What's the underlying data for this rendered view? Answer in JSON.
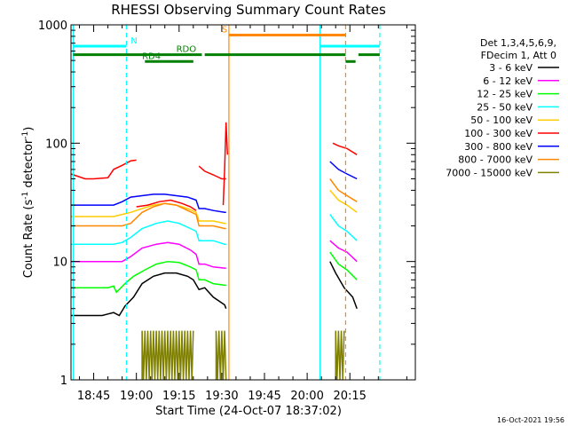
{
  "chart_data": {
    "type": "line",
    "title": "RHESSI Observing Summary Count Rates",
    "xlabel": "Start Time (24-Oct-07 18:37:02)",
    "ylabel_parts": [
      "Count Rate (s",
      "-1",
      " detector",
      "-1",
      ")"
    ],
    "yscale": "log",
    "ylim": [
      1,
      1000
    ],
    "xlim_min": [
      37.03,
      158
    ],
    "x_ticks": [
      {
        "m": 45,
        "label": "18:45"
      },
      {
        "m": 60,
        "label": "19:00"
      },
      {
        "m": 75,
        "label": "19:15"
      },
      {
        "m": 90,
        "label": "19:30"
      },
      {
        "m": 105,
        "label": "19:45"
      },
      {
        "m": 120,
        "label": "20:00"
      },
      {
        "m": 135,
        "label": "20:15"
      }
    ],
    "y_ticks": [
      {
        "v": 1,
        "label": "1"
      },
      {
        "v": 10,
        "label": "10"
      },
      {
        "v": 100,
        "label": "100"
      },
      {
        "v": 1000,
        "label": "1000"
      }
    ],
    "legend": {
      "header": [
        "Det 1,3,4,5,6,9,",
        "FDecim 1, Att 0"
      ],
      "placement": "right",
      "entries": [
        {
          "label": "3 - 6 keV",
          "color": "#000000"
        },
        {
          "label": "6 - 12 keV",
          "color": "#ff00ff"
        },
        {
          "label": "12 - 25 keV",
          "color": "#00ff00"
        },
        {
          "label": "25 - 50 keV",
          "color": "#00ffff"
        },
        {
          "label": "50 - 100 keV",
          "color": "#ffcc00"
        },
        {
          "label": "100 - 300 keV",
          "color": "#ff0000"
        },
        {
          "label": "300 - 800 keV",
          "color": "#0000ff"
        },
        {
          "label": "800 - 7000 keV",
          "color": "#ff8800"
        },
        {
          "label": "7000 - 15000 keV",
          "color": "#808000"
        }
      ]
    },
    "series": [
      {
        "name": "3 - 6 keV",
        "color": "#000000",
        "segments": [
          [
            [
              37,
              3.5
            ],
            [
              48,
              3.5
            ],
            [
              50,
              3.6
            ],
            [
              52,
              3.7
            ],
            [
              54,
              3.5
            ],
            [
              56,
              4.2
            ],
            [
              59,
              5
            ],
            [
              62,
              6.5
            ],
            [
              66,
              7.5
            ],
            [
              70,
              8
            ],
            [
              74,
              8
            ],
            [
              78,
              7.5
            ],
            [
              80,
              7
            ],
            [
              82,
              5.8
            ],
            [
              84,
              6
            ],
            [
              87,
              5
            ],
            [
              91,
              4.3
            ],
            [
              91.5,
              4
            ]
          ],
          [
            [
              128,
              10
            ],
            [
              130,
              8
            ],
            [
              133,
              6
            ],
            [
              136,
              5
            ],
            [
              137.5,
              4
            ]
          ]
        ]
      },
      {
        "name": "6 - 12 keV",
        "color": "#ff00ff",
        "segments": [
          [
            [
              37,
              10
            ],
            [
              45,
              10
            ],
            [
              52,
              10
            ],
            [
              55,
              10
            ],
            [
              58,
              11
            ],
            [
              62,
              13
            ],
            [
              67,
              14
            ],
            [
              71,
              14.5
            ],
            [
              75,
              14
            ],
            [
              79,
              12.5
            ],
            [
              81,
              11.5
            ],
            [
              82,
              9.5
            ],
            [
              84,
              9.5
            ],
            [
              87,
              9
            ],
            [
              91,
              8.8
            ],
            [
              91.5,
              8.8
            ]
          ],
          [
            [
              128,
              15
            ],
            [
              131,
              13
            ],
            [
              134,
              12
            ],
            [
              137.5,
              10
            ]
          ]
        ]
      },
      {
        "name": "12 - 25 keV",
        "color": "#00ff00",
        "segments": [
          [
            [
              37,
              6
            ],
            [
              45,
              6
            ],
            [
              50,
              6
            ],
            [
              52,
              6.2
            ],
            [
              53,
              5.5
            ],
            [
              56,
              6.5
            ],
            [
              59,
              7.5
            ],
            [
              63,
              8.5
            ],
            [
              67,
              9.5
            ],
            [
              71,
              10
            ],
            [
              75,
              9.8
            ],
            [
              79,
              9
            ],
            [
              81,
              8.5
            ],
            [
              82,
              7
            ],
            [
              84,
              7
            ],
            [
              87,
              6.5
            ],
            [
              91,
              6.3
            ],
            [
              91.5,
              6.3
            ]
          ],
          [
            [
              128,
              12
            ],
            [
              131,
              9.5
            ],
            [
              134,
              8.5
            ],
            [
              137.5,
              7
            ]
          ]
        ]
      },
      {
        "name": "25 - 50 keV",
        "color": "#00ffff",
        "segments": [
          [
            [
              37,
              14
            ],
            [
              45,
              14
            ],
            [
              52,
              14
            ],
            [
              55,
              14.5
            ],
            [
              58,
              16
            ],
            [
              62,
              19
            ],
            [
              67,
              21
            ],
            [
              71,
              22
            ],
            [
              75,
              21
            ],
            [
              79,
              19
            ],
            [
              81,
              18
            ],
            [
              82,
              15
            ],
            [
              84,
              15
            ],
            [
              87,
              15
            ],
            [
              91,
              14
            ],
            [
              91.5,
              14
            ]
          ],
          [
            [
              128,
              25
            ],
            [
              131,
              20
            ],
            [
              134,
              18
            ],
            [
              137.5,
              15
            ]
          ]
        ]
      },
      {
        "name": "50 - 100 keV",
        "color": "#ffcc00",
        "segments": [
          [
            [
              37,
              24
            ],
            [
              45,
              24
            ],
            [
              52,
              24
            ],
            [
              55,
              25
            ],
            [
              58,
              26
            ],
            [
              62,
              28
            ],
            [
              66,
              30
            ],
            [
              70,
              31
            ],
            [
              74,
              30
            ],
            [
              78,
              28
            ],
            [
              81,
              26
            ],
            [
              82,
              22
            ],
            [
              84,
              22
            ],
            [
              87,
              22
            ],
            [
              91,
              21
            ],
            [
              91.5,
              21
            ]
          ],
          [
            [
              128,
              40
            ],
            [
              131,
              33
            ],
            [
              134,
              30
            ],
            [
              137.5,
              26
            ]
          ]
        ]
      },
      {
        "name": "100 - 300 keV",
        "color": "#ff0000",
        "segments": [
          [
            [
              37,
              55
            ],
            [
              42,
              50
            ],
            [
              45,
              50
            ],
            [
              50,
              51
            ],
            [
              52,
              60
            ],
            [
              55,
              65
            ],
            [
              58,
              71
            ],
            [
              60,
              72
            ]
          ],
          [
            [
              60,
              29
            ],
            [
              64,
              30
            ],
            [
              68,
              32
            ],
            [
              72,
              33
            ],
            [
              76,
              31
            ],
            [
              79,
              29
            ],
            [
              81,
              27
            ]
          ],
          [
            [
              82,
              64
            ],
            [
              84,
              58
            ],
            [
              87,
              54
            ],
            [
              90,
              50
            ],
            [
              91.5,
              50
            ]
          ],
          [
            [
              129,
              100
            ],
            [
              131,
              95
            ],
            [
              134,
              90
            ],
            [
              137.5,
              80
            ]
          ]
        ]
      },
      {
        "name": "300 - 800 keV",
        "color": "#0000ff",
        "segments": [
          [
            [
              37,
              30
            ],
            [
              45,
              30
            ],
            [
              52,
              30
            ],
            [
              55,
              32
            ],
            [
              58,
              35
            ],
            [
              62,
              36
            ],
            [
              66,
              37
            ],
            [
              70,
              37
            ],
            [
              74,
              36
            ],
            [
              78,
              35
            ],
            [
              81,
              33
            ],
            [
              82,
              28
            ],
            [
              84,
              28
            ],
            [
              87,
              27
            ],
            [
              91,
              26
            ],
            [
              91.5,
              26
            ]
          ],
          [
            [
              128,
              70
            ],
            [
              131,
              60
            ],
            [
              134,
              55
            ],
            [
              137.5,
              50
            ]
          ]
        ]
      },
      {
        "name": "800 - 7000 keV",
        "color": "#ff8800",
        "segments": [
          [
            [
              37,
              20
            ],
            [
              45,
              20
            ],
            [
              52,
              20
            ],
            [
              55,
              20
            ],
            [
              58,
              21
            ],
            [
              62,
              26
            ],
            [
              66,
              29
            ],
            [
              70,
              31
            ],
            [
              74,
              30
            ],
            [
              78,
              27
            ],
            [
              81,
              25
            ],
            [
              82,
              20
            ],
            [
              84,
              20
            ],
            [
              87,
              20
            ],
            [
              91,
              19
            ],
            [
              91.5,
              19
            ]
          ],
          [
            [
              128,
              50
            ],
            [
              131,
              40
            ],
            [
              134,
              36
            ],
            [
              137.5,
              32
            ]
          ]
        ]
      },
      {
        "name": "7000 - 15000 keV",
        "color": "#808000",
        "segments": [
          [
            [
              62,
              1.0
            ],
            [
              62,
              2.6
            ],
            [
              62.5,
              1.0
            ],
            [
              63,
              2.6
            ],
            [
              63.5,
              1.0
            ],
            [
              64,
              2.6
            ],
            [
              64.5,
              1.0
            ],
            [
              65,
              2.6
            ],
            [
              65.5,
              1.0
            ],
            [
              66,
              2.6
            ],
            [
              66.5,
              1.0
            ],
            [
              67,
              2.6
            ],
            [
              67.5,
              1.0
            ],
            [
              68,
              2.6
            ],
            [
              68.5,
              1.0
            ],
            [
              69,
              2.6
            ],
            [
              69.5,
              1.0
            ],
            [
              70,
              2.6
            ],
            [
              70.5,
              1.0
            ],
            [
              71,
              2.6
            ],
            [
              71.5,
              1.0
            ],
            [
              72,
              2.6
            ],
            [
              72.5,
              1.0
            ],
            [
              73,
              2.6
            ],
            [
              73.5,
              1.0
            ],
            [
              74,
              2.6
            ],
            [
              74.5,
              1.0
            ],
            [
              75,
              2.6
            ],
            [
              75.5,
              1.0
            ],
            [
              76,
              2.6
            ],
            [
              76.5,
              1.0
            ],
            [
              77,
              2.6
            ],
            [
              77.5,
              1.0
            ],
            [
              78,
              2.6
            ],
            [
              78.5,
              1.0
            ],
            [
              79,
              2.6
            ],
            [
              79.5,
              1.0
            ],
            [
              80,
              2.6
            ]
          ],
          [
            [
              88,
              1.0
            ],
            [
              88,
              2.6
            ],
            [
              88.5,
              1.0
            ],
            [
              89,
              2.6
            ],
            [
              89.5,
              1.0
            ],
            [
              90,
              2.6
            ],
            [
              90.5,
              1.0
            ],
            [
              91,
              2.6
            ],
            [
              91.5,
              1.0
            ]
          ],
          [
            [
              130,
              1.0
            ],
            [
              130,
              2.6
            ],
            [
              130.5,
              1.0
            ],
            [
              131,
              2.6
            ],
            [
              131.5,
              1.0
            ],
            [
              132,
              2.6
            ],
            [
              132.5,
              1.0
            ],
            [
              133,
              2.6
            ]
          ]
        ]
      }
    ],
    "flare_spike": {
      "color": "#ff0000",
      "points": [
        [
          90.5,
          30
        ],
        [
          91,
          60
        ],
        [
          91.5,
          150
        ],
        [
          92,
          80
        ]
      ]
    },
    "vlines": [
      {
        "m": 37.8,
        "color": "#00ffff",
        "style": "solid"
      },
      {
        "m": 56.5,
        "color": "#00ffff",
        "style": "dashed"
      },
      {
        "m": 92.5,
        "color": "#ff8800",
        "style": "solid"
      },
      {
        "m": 124.5,
        "color": "#00ffff",
        "style": "solid"
      },
      {
        "m": 133.5,
        "color": "#ff8800",
        "style": "dashed"
      },
      {
        "m": 145.5,
        "color": "#00ffff",
        "style": "dashed"
      }
    ],
    "bars": [
      {
        "m0": 37.8,
        "m1": 56.5,
        "y": 660,
        "color": "#00ffff",
        "label": "N",
        "label_at": 58
      },
      {
        "m0": 124.5,
        "m1": 145.5,
        "y": 660,
        "color": "#00ffff"
      },
      {
        "m0": 92.5,
        "m1": 133.5,
        "y": 820,
        "color": "#ff8800",
        "label": "S",
        "label_at": 90
      },
      {
        "m0": 37.8,
        "m1": 83,
        "y": 560,
        "color": "#008000",
        "label": "RDO",
        "label_at": 74
      },
      {
        "m0": 63,
        "m1": 80,
        "y": 490,
        "color": "#008000",
        "label": "RD4",
        "label_at": 62
      },
      {
        "m0": 84,
        "m1": 133.5,
        "y": 560,
        "color": "#008000"
      },
      {
        "m0": 133.5,
        "m1": 137,
        "y": 490,
        "color": "#008000"
      },
      {
        "m0": 138,
        "m1": 145.5,
        "y": 560,
        "color": "#008000"
      }
    ],
    "footer_date": "16-Oct-2021 19:56"
  }
}
